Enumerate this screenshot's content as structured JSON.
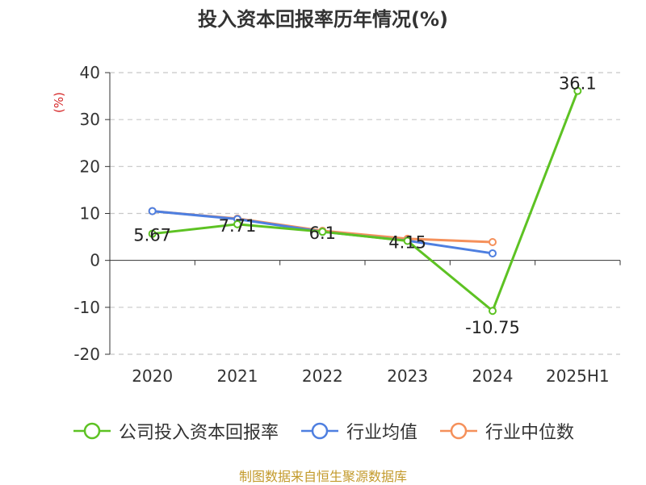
{
  "chart_data": {
    "type": "line",
    "title": "投入资本回报率历年情况(%)",
    "ylabel": "(%)",
    "categories": [
      "2020",
      "2021",
      "2022",
      "2023",
      "2024",
      "2025H1"
    ],
    "ylim": [
      -20,
      40
    ],
    "yticks": [
      "40",
      "30",
      "20",
      "10",
      "0",
      "-10",
      "-20"
    ],
    "grid": true,
    "legend_position": "bottom",
    "series": [
      {
        "name": "公司投入资本回报率",
        "color": "#5dc223",
        "values": [
          5.67,
          7.71,
          6.1,
          4.15,
          -10.75,
          36.1
        ],
        "labels": [
          "5.67",
          "7.71",
          "6.1",
          "4.15",
          "-10.75",
          "36.1"
        ]
      },
      {
        "name": "行业均值",
        "color": "#4e7fe0",
        "values": [
          10.5,
          8.8,
          6.1,
          4.2,
          1.5,
          null
        ]
      },
      {
        "name": "行业中位数",
        "color": "#f5905a",
        "values": [
          10.5,
          8.9,
          6.3,
          4.6,
          3.9,
          null
        ]
      }
    ]
  },
  "source": "制图数据来自恒生聚源数据库"
}
